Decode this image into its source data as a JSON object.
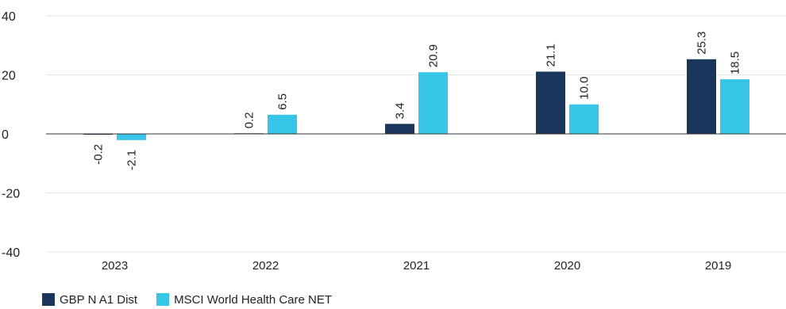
{
  "chart_data": {
    "type": "bar",
    "categories": [
      "2023",
      "2022",
      "2021",
      "2020",
      "2019"
    ],
    "series": [
      {
        "name": "GBP N A1 Dist",
        "color": "#1b365d",
        "values": [
          -0.2,
          0.2,
          3.4,
          21.1,
          25.3
        ],
        "labels": [
          "-0.2",
          "0.2",
          "3.4",
          "21.1",
          "25.3"
        ]
      },
      {
        "name": "MSCI World Health Care NET",
        "color": "#38c6e8",
        "values": [
          -2.1,
          6.5,
          20.9,
          10.0,
          18.5
        ],
        "labels": [
          "-2.1",
          "6.5",
          "20.9",
          "10.0",
          "18.5"
        ]
      }
    ],
    "ylim": [
      -40,
      40
    ],
    "yticks": [
      "40",
      "20",
      "0",
      "-20",
      "-40"
    ],
    "grid": true,
    "legend_position": "bottom-left",
    "title": "",
    "xlabel": "",
    "ylabel": ""
  }
}
